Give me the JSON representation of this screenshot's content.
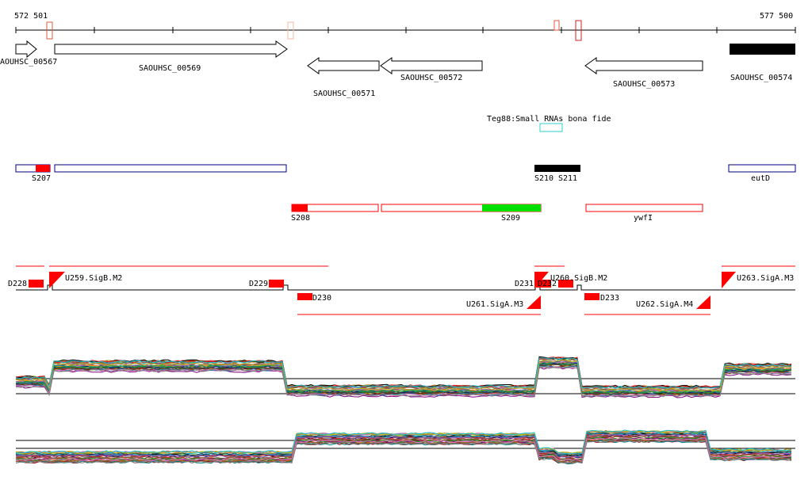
{
  "coords": {
    "start": "572 501",
    "end": "577 500"
  },
  "genes": [
    {
      "id": "gene-00567",
      "label": "AOUHSC_00567",
      "strand": "+"
    },
    {
      "id": "gene-00569",
      "label": "SAOUHSC_00569",
      "strand": "+"
    },
    {
      "id": "gene-00571",
      "label": "SAOUHSC_00571",
      "strand": "-"
    },
    {
      "id": "gene-00572",
      "label": "SAOUHSC_00572",
      "strand": "-"
    },
    {
      "id": "gene-00573",
      "label": "SAOUHSC_00573",
      "strand": "-"
    },
    {
      "id": "gene-00574",
      "label": "SAOUHSC_00574",
      "strand": "filled"
    }
  ],
  "srna": {
    "label": "Teg88:Small RNAs bona fide"
  },
  "segments_plus": [
    "S207",
    "S210",
    "S211",
    "eutD"
  ],
  "segments_minus": [
    "S208",
    "S209",
    "ywfI"
  ],
  "promoters": [
    "U259.SigB.M2",
    "U260.SigB.M2",
    "U263.SigA.M3",
    "U261.SigA.M3",
    "U262.SigA.M4"
  ],
  "downshifts": [
    "D228",
    "D229",
    "D231",
    "D232",
    "D230",
    "D233"
  ],
  "colors": {
    "segment_outline": "#000080",
    "segment_red": "#ff0000",
    "segment_green": "#00e000",
    "srna_box": "#33cccc",
    "promoter": "#ff0000",
    "tick_marker": "#e05a3a"
  },
  "expression_panels": [
    {
      "name": "plus-strand-expression",
      "step": "high-low-high-low-high"
    },
    {
      "name": "minus-strand-expression",
      "step": "low-high-low"
    }
  ]
}
